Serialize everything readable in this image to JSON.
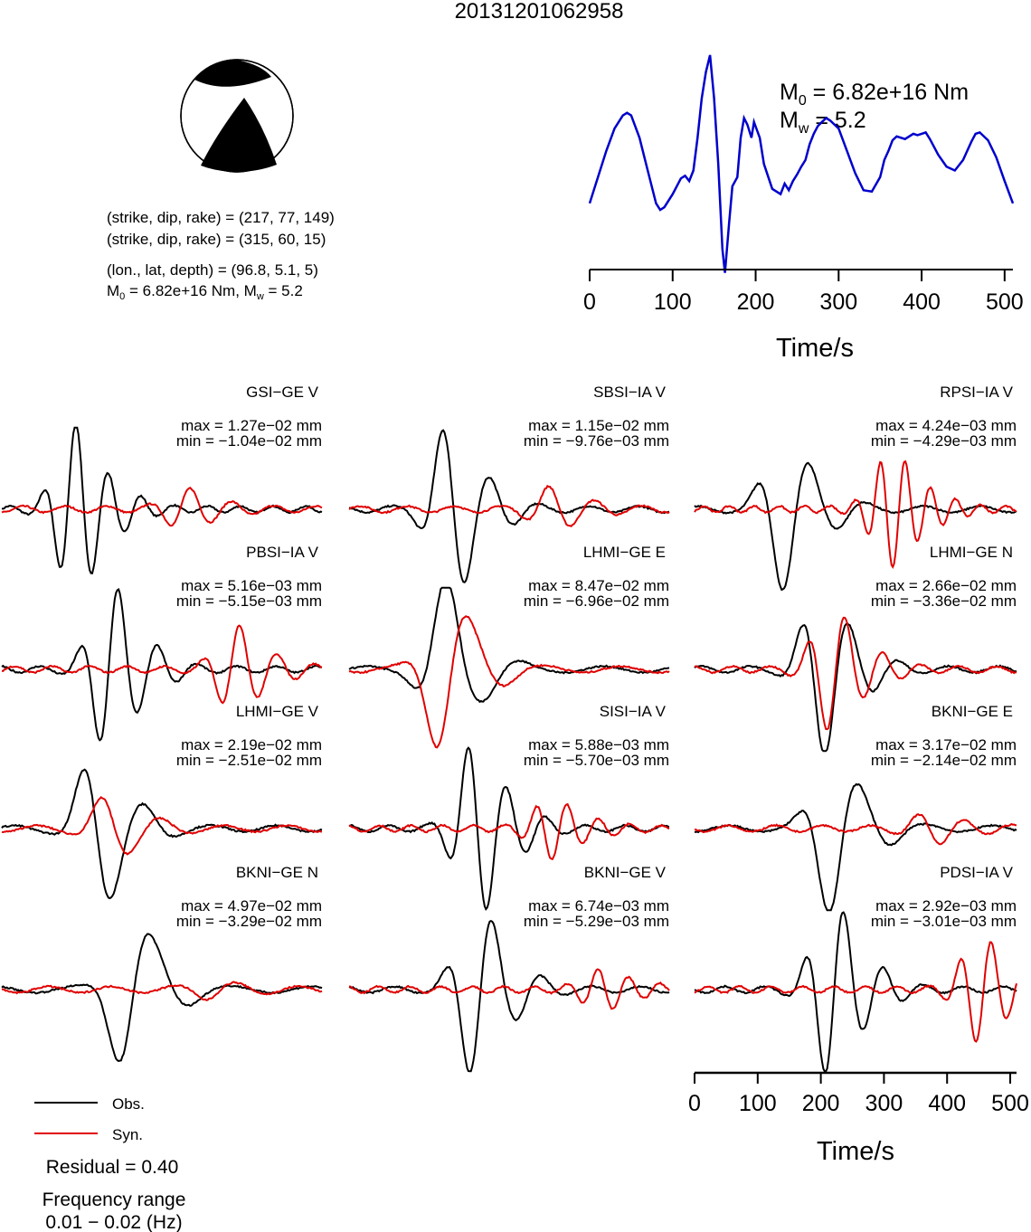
{
  "figure": {
    "title": "20131201062958",
    "params": {
      "line1": "(strike, dip, rake) = (217, 77, 149)",
      "line2": "(strike, dip, rake) = (315, 60, 15)",
      "line3": "(lon., lat, depth) = (96.8, 5.1, 5)",
      "moment_base": "M",
      "moment_sub": "0",
      "moment_rest": " = 6.82e+16 Nm, M",
      "mw_sub": "w",
      "mw_rest": " = 5.2"
    },
    "stf": {
      "m0_base": "M",
      "m0_sub": "0",
      "m0_value": " = 6.82e+16 Nm",
      "mw_base": "M",
      "mw_sub": "w",
      "mw_value": " = 5.2"
    },
    "legend": {
      "obs_label": "Obs.",
      "syn_label": "Syn.",
      "residual": "Residual = 0.40",
      "freq_title": "Frequency range",
      "freq_range": "0.01 − 0.02 (Hz)"
    },
    "colors": {
      "obs": "#000000",
      "syn": "#e00000",
      "stf": "#0000cc"
    }
  },
  "chart_data": [
    {
      "type": "line",
      "name": "source-time-function",
      "xlabel": "Time/s",
      "xlim": [
        0,
        510
      ],
      "xticks": [
        0,
        100,
        200,
        300,
        400,
        500
      ],
      "series": [
        {
          "x": [
            0,
            10,
            20,
            30,
            40,
            45,
            50,
            60,
            70,
            80,
            85,
            90,
            100,
            110,
            115,
            120,
            125,
            130,
            135,
            140,
            145,
            150,
            155,
            160,
            163,
            168,
            172,
            178,
            182,
            186,
            190,
            195,
            198,
            202,
            205,
            210,
            220,
            230,
            235,
            240,
            245,
            250,
            255,
            260,
            265,
            270,
            275,
            280,
            285,
            290,
            300,
            310,
            320,
            330,
            340,
            350,
            355,
            360,
            365,
            370,
            380,
            390,
            395,
            400,
            405,
            410,
            420,
            430,
            440,
            450,
            460,
            465,
            470,
            480,
            490,
            500,
            510
          ],
          "y": [
            0.05,
            0.25,
            0.45,
            0.62,
            0.72,
            0.74,
            0.72,
            0.55,
            0.3,
            0.05,
            0.0,
            0.02,
            0.12,
            0.24,
            0.26,
            0.22,
            0.3,
            0.55,
            0.85,
            1.05,
            1.18,
            0.85,
            0.35,
            -0.3,
            -0.48,
            -0.1,
            0.18,
            0.25,
            0.55,
            0.7,
            0.65,
            0.55,
            0.67,
            0.6,
            0.55,
            0.35,
            0.16,
            0.12,
            0.2,
            0.15,
            0.22,
            0.27,
            0.33,
            0.38,
            0.5,
            0.58,
            0.64,
            0.67,
            0.7,
            0.68,
            0.62,
            0.45,
            0.28,
            0.15,
            0.14,
            0.25,
            0.38,
            0.45,
            0.53,
            0.56,
            0.54,
            0.58,
            0.57,
            0.58,
            0.59,
            0.54,
            0.42,
            0.33,
            0.3,
            0.38,
            0.52,
            0.58,
            0.59,
            0.53,
            0.4,
            0.22,
            0.05
          ]
        }
      ]
    },
    {
      "type": "line",
      "name": "waveform-panels",
      "xlabel": "Time/s",
      "xlim": [
        0,
        510
      ],
      "xticks": [
        0,
        100,
        200,
        300,
        400,
        500
      ],
      "series": [
        "Obs.",
        "Syn."
      ],
      "panels": [
        {
          "station": "GSI−GE V",
          "max": "max = 1.27e−02 mm",
          "min": "min = −1.04e−02 mm",
          "obs": {
            "c": 115,
            "s": 0.9,
            "f": 0.12
          },
          "syn": {
            "c": 290,
            "s": 0.2,
            "f": 0.09
          }
        },
        {
          "station": "SBSI−IA V",
          "max": "max = 1.15e−02 mm",
          "min": "min = −9.76e−03 mm",
          "obs": {
            "c": 160,
            "s": 0.95,
            "f": 0.08
          },
          "syn": {
            "c": 320,
            "s": 0.22,
            "f": 0.08
          }
        },
        {
          "station": "RPSI−IA V",
          "max": "max = 4.24e−03 mm",
          "min": "min = −4.29e−03 mm",
          "obs": {
            "c": 140,
            "s": 0.85,
            "f": 0.07
          },
          "syn": {
            "c": 310,
            "s": 0.6,
            "f": 0.15
          }
        },
        {
          "station": "PBSI−IA V",
          "max": "max = 5.16e−03 mm",
          "min": "min = −5.15e−03 mm",
          "obs": {
            "c": 170,
            "s": 0.9,
            "f": 0.1
          },
          "syn": {
            "c": 370,
            "s": 0.45,
            "f": 0.1
          }
        },
        {
          "station": "LHMI−GE E",
          "max": "max = 8.47e−02 mm",
          "min": "min = −6.96e−02 mm",
          "obs": {
            "c": 150,
            "s": 0.95,
            "f": 0.05
          },
          "syn": {
            "c": 150,
            "s": 0.95,
            "f": 0.05
          }
        },
        {
          "station": "LHMI−GE N",
          "max": "max = 2.66e−02 mm",
          "min": "min = −3.36e−02 mm",
          "obs": {
            "c": 200,
            "s": 0.9,
            "f": 0.08
          },
          "syn": {
            "c": 215,
            "s": 0.65,
            "f": 0.1
          }
        },
        {
          "station": "LHMI−GE V",
          "max": "max = 2.19e−02 mm",
          "min": "min = −2.51e−02 mm",
          "obs": {
            "c": 150,
            "s": 0.9,
            "f": 0.06
          },
          "syn": {
            "c": 170,
            "s": 0.35,
            "f": 0.06
          }
        },
        {
          "station": "SISI−IA V",
          "max": "max = 5.88e−03 mm",
          "min": "min = −5.70e−03 mm",
          "obs": {
            "c": 200,
            "s": 0.95,
            "f": 0.1
          },
          "syn": {
            "c": 320,
            "s": 0.3,
            "f": 0.12
          }
        },
        {
          "station": "BKNI−GE E",
          "max": "max = 3.17e−02 mm",
          "min": "min = −2.14e−02 mm",
          "obs": {
            "c": 215,
            "s": 0.9,
            "f": 0.06
          },
          "syn": {
            "c": 370,
            "s": 0.15,
            "f": 0.08
          }
        },
        {
          "station": "BKNI−GE N",
          "max": "max = 4.97e−02 mm",
          "min": "min = −3.29e−02 mm",
          "obs": {
            "c": 200,
            "s": 0.95,
            "f": 0.05
          },
          "syn": {
            "c": 330,
            "s": 0.08,
            "f": 0.06
          }
        },
        {
          "station": "BKNI−GE V",
          "max": "max = 6.74e−03 mm",
          "min": "min = −5.29e−03 mm",
          "obs": {
            "c": 200,
            "s": 0.95,
            "f": 0.08
          },
          "syn": {
            "c": 400,
            "s": 0.2,
            "f": 0.12
          }
        },
        {
          "station": "PDSI−IA V",
          "max": "max = 2.92e−03 mm",
          "min": "min = −3.01e−03 mm",
          "obs": {
            "c": 215,
            "s": 0.95,
            "f": 0.1
          },
          "syn": {
            "c": 450,
            "s": 0.55,
            "f": 0.12
          }
        }
      ]
    }
  ]
}
